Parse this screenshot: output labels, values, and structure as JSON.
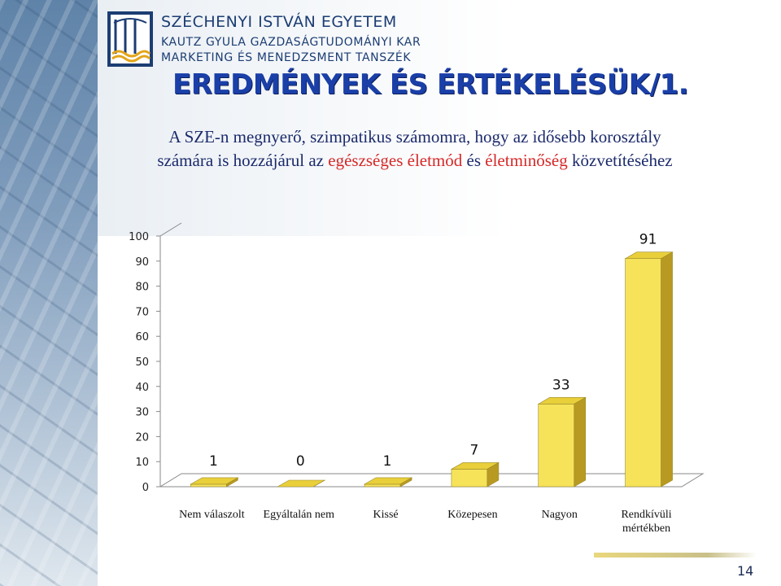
{
  "header": {
    "university": "SZÉCHENYI ISTVÁN EGYETEM",
    "faculty": "KAUTZ GYULA GAZDASÁGTUDOMÁNYI KAR",
    "department": "MARKETING ÉS MENEDZSMENT TANSZÉK"
  },
  "slide": {
    "title": "EREDMÉNYEK ÉS ÉRTÉKELÉSÜK/1.",
    "subtitle_part1": "A SZE-n megnyerő, szimpatikus számomra, hogy az idősebb korosztály számára is hozzájárul az ",
    "subtitle_red1": "egészséges életmód",
    "subtitle_part2": " és ",
    "subtitle_red2": "életminőség",
    "subtitle_part3": " közvetítéséhez",
    "page_number": "14"
  },
  "colors": {
    "bar_front": "#f6e35a",
    "bar_top": "#e9cf3a",
    "bar_side": "#b89a22",
    "title": "#1a3fa8",
    "accent_red": "#d62828"
  },
  "chart_data": {
    "type": "bar",
    "categories": [
      "Nem válaszolt",
      "Egyáltalán nem",
      "Kissé",
      "Közepesen",
      "Nagyon",
      "Rendkívüli mértékben"
    ],
    "category_lines": [
      [
        "Nem válaszolt"
      ],
      [
        "Egyáltalán nem"
      ],
      [
        "Kissé"
      ],
      [
        "Közepesen"
      ],
      [
        "Nagyon"
      ],
      [
        "Rendkívüli",
        "mértékben"
      ]
    ],
    "values": [
      1,
      0,
      1,
      7,
      33,
      91
    ],
    "value_labels": [
      "1",
      "0",
      "1",
      "7",
      "33",
      "91"
    ],
    "yticks": [
      0,
      10,
      20,
      30,
      40,
      50,
      60,
      70,
      80,
      90,
      100
    ],
    "ylim": [
      0,
      100
    ],
    "title": "",
    "xlabel": "",
    "ylabel": ""
  }
}
